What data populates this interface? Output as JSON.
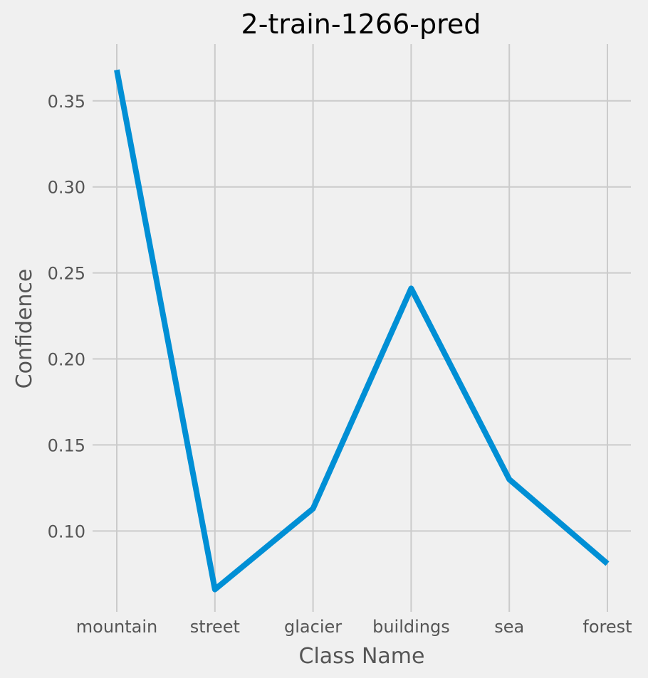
{
  "chart_data": {
    "type": "line",
    "title": "2-train-1266-pred",
    "xlabel": "Class Name",
    "ylabel": "Confidence",
    "categories": [
      "mountain",
      "street",
      "glacier",
      "buildings",
      "sea",
      "forest"
    ],
    "series": [
      {
        "values": [
          0.368,
          0.066,
          0.113,
          0.241,
          0.13,
          0.081
        ],
        "color": "#008fd5"
      }
    ],
    "y_ticks": [
      0.1,
      0.15,
      0.2,
      0.25,
      0.3,
      0.35
    ],
    "ylim": [
      0.053,
      0.383
    ],
    "grid": true,
    "legend": "none"
  }
}
